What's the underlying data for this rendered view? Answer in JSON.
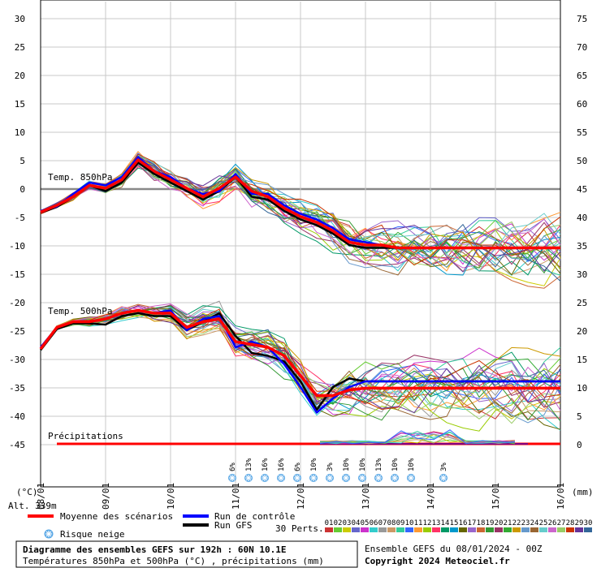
{
  "chart_data": {
    "type": "line",
    "title": "Diagramme des ensembles GEFS sur 192h : 60N 10.1E",
    "subtitle": "Températures 850hPa et 500hPa (°C) , précipitations (mm)",
    "run_info": "Ensemble GEFS du 08/01/2024 - 00Z",
    "copyright": "Copyright 2024 Meteociel.fr",
    "left_unit": "(°C)",
    "right_unit": "(mm)",
    "altitude": "Alt. 339m",
    "y_left_ticks": [
      "30",
      "25",
      "20",
      "15",
      "10",
      "5",
      "0",
      "-5",
      "-10",
      "-15",
      "-20",
      "-25",
      "-30",
      "-35",
      "-40",
      "-45"
    ],
    "y_right_ticks": [
      "75",
      "70",
      "65",
      "60",
      "55",
      "50",
      "45",
      "40",
      "35",
      "30",
      "25",
      "20",
      "15",
      "10",
      "5",
      "0"
    ],
    "x_ticks": [
      "08/01",
      "09/01",
      "10/01",
      "11/01",
      "12/01",
      "13/01",
      "14/01",
      "15/01",
      "16/01"
    ],
    "panels": {
      "t850": "Temp. 850hPa",
      "t500": "Temp. 500hPa",
      "precip": "Précipitations"
    },
    "x_days": [
      0,
      0.25,
      0.5,
      0.75,
      1,
      1.25,
      1.5,
      1.75,
      2,
      2.25,
      2.5,
      2.75,
      3,
      3.25,
      3.5,
      3.75,
      4,
      4.25,
      4.5,
      4.75,
      5,
      5.25,
      5.5,
      5.75,
      6,
      6.25,
      6.5,
      6.75,
      7,
      7.25,
      7.5,
      7.75,
      8
    ],
    "series": [
      {
        "name": "Moyenne des scénarios",
        "color": "#ff0000",
        "t850": [
          -4.2,
          -3.0,
          -1.5,
          0.5,
          0.0,
          1.5,
          5.0,
          3.0,
          1.5,
          0.0,
          -1.5,
          0.0,
          2.0,
          -0.5,
          -1.5,
          -3.5,
          -5.0,
          -6.0,
          -7.5,
          -9.5,
          -10.0,
          -10.0,
          -10.5,
          -10.5,
          -10.5,
          -10.5,
          -10.5,
          -10.5,
          -10.5,
          -10.5,
          -10.5,
          -10.5,
          -10.5
        ],
        "t500": [
          -28.3,
          -24.5,
          -23.5,
          -23.5,
          -23.0,
          -22.0,
          -21.5,
          -22.0,
          -22.0,
          -24.5,
          -23.5,
          -23.0,
          -27.0,
          -27.5,
          -28.0,
          -29.5,
          -33.0,
          -36.5,
          -36.5,
          -35.5,
          -35.2,
          -35.2,
          -35.2,
          -35.2,
          -35.2,
          -35.2,
          -35.2,
          -35.2,
          -35.2,
          -35.2,
          -35.2,
          -35.2,
          -35.2
        ]
      },
      {
        "name": "Run de contrôle",
        "color": "#0000ff",
        "t850": [
          -4.0,
          -3.2,
          -1.0,
          1.0,
          0.5,
          2.0,
          5.5,
          3.0,
          2.0,
          0.0,
          -1.0,
          -0.5,
          2.5,
          -1.0,
          -1.0,
          -3.0,
          -4.5,
          -5.5,
          -7.0,
          -9.0,
          -9.5,
          -10.0,
          -10.5,
          -10.5,
          -10.5,
          -10.5,
          -10.5,
          -10.5,
          -10.5,
          -10.5,
          -10.5,
          -10.5,
          -10.5
        ],
        "t500": [
          -28.0,
          -24.5,
          -23.5,
          -23.5,
          -23.0,
          -22.0,
          -21.5,
          -22.0,
          -21.5,
          -25.0,
          -23.0,
          -22.5,
          -28.0,
          -27.0,
          -28.0,
          -31.0,
          -35.0,
          -39.5,
          -37.0,
          -35.0,
          -34.0,
          -34.0,
          -34.0,
          -34.0,
          -34.0,
          -34.0,
          -34.0,
          -34.0,
          -34.0,
          -34.0,
          -34.0,
          -34.0,
          -34.0
        ]
      },
      {
        "name": "Run GFS",
        "color": "#000000",
        "t850": [
          -4.3,
          -3.3,
          -1.5,
          0.5,
          -0.5,
          1.0,
          4.5,
          2.5,
          1.0,
          -0.5,
          -2.0,
          -0.5,
          2.0,
          -1.5,
          -2.0,
          -4.0,
          -5.5,
          -6.5,
          -8.0,
          -10.0,
          -10.5,
          -10.5,
          -10.5,
          -10.5,
          -10.5,
          -10.5,
          -10.5,
          -10.5,
          -10.5,
          -10.5,
          -10.5,
          -10.5,
          -10.5
        ],
        "t500": [
          -28.5,
          -24.8,
          -23.8,
          -23.8,
          -24.0,
          -22.5,
          -22.0,
          -22.5,
          -22.5,
          -25.0,
          -23.5,
          -22.0,
          -26.0,
          -29.0,
          -29.5,
          -30.5,
          -34.0,
          -39.0,
          -35.0,
          -33.5,
          -34.0,
          -34.0,
          -34.0,
          -34.0,
          -34.0,
          -34.0,
          -34.0,
          -34.0,
          -34.0,
          -34.0,
          -34.0,
          -34.0,
          -34.0
        ]
      }
    ],
    "snow_risk_labels": [
      {
        "day": 2.95,
        "text": "6%"
      },
      {
        "day": 3.2,
        "text": "13%"
      },
      {
        "day": 3.45,
        "text": "16%"
      },
      {
        "day": 3.7,
        "text": "16%"
      },
      {
        "day": 3.95,
        "text": "6%"
      },
      {
        "day": 4.2,
        "text": "10%"
      },
      {
        "day": 4.45,
        "text": "3%"
      },
      {
        "day": 4.7,
        "text": "10%"
      },
      {
        "day": 4.95,
        "text": "10%"
      },
      {
        "day": 5.2,
        "text": "13%"
      },
      {
        "day": 5.45,
        "text": "10%"
      },
      {
        "day": 5.7,
        "text": "10%"
      },
      {
        "day": 6.2,
        "text": "3%"
      }
    ],
    "legend": {
      "mean": "Moyenne des scénarios",
      "control": "Run de contrôle",
      "gfs": "Run GFS",
      "snow": "Risque neige",
      "perts": "30 Perts."
    },
    "perturbation_labels": [
      "01",
      "02",
      "03",
      "04",
      "05",
      "06",
      "07",
      "08",
      "09",
      "10",
      "11",
      "12",
      "13",
      "14",
      "15",
      "16",
      "17",
      "18",
      "19",
      "20",
      "21",
      "22",
      "23",
      "24",
      "25",
      "26",
      "27",
      "28",
      "29",
      "30"
    ],
    "perturbation_colors": [
      "#cc3333",
      "#66cc33",
      "#cccc00",
      "#6666cc",
      "#cc33cc",
      "#33cccc",
      "#999999",
      "#cc9966",
      "#33cc99",
      "#3366ff",
      "#ff9933",
      "#99cc00",
      "#ff3366",
      "#009966",
      "#0099cc",
      "#666600",
      "#9966cc",
      "#cc6633",
      "#339933",
      "#993366",
      "#33aa33",
      "#cc9900",
      "#6699cc",
      "#996633",
      "#66cccc",
      "#cc66cc",
      "#99cc66",
      "#cc3300",
      "#663399",
      "#336699"
    ]
  }
}
